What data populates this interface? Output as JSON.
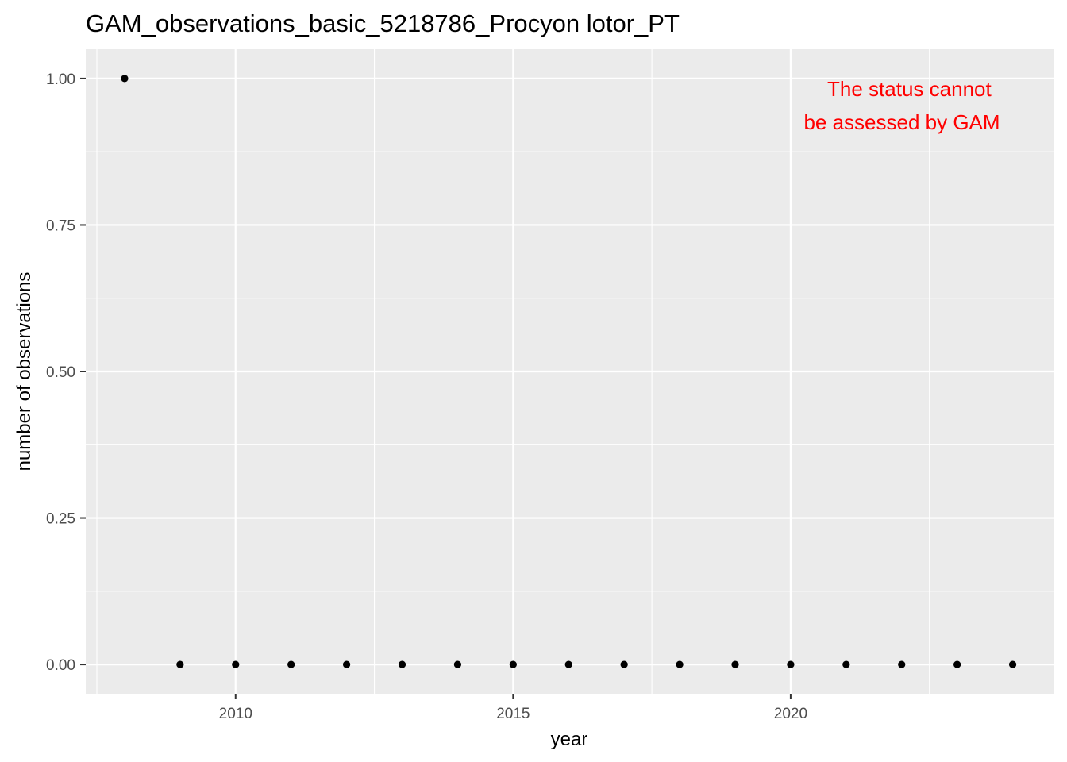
{
  "chart_data": {
    "type": "scatter",
    "title": "GAM_observations_basic_5218786_Procyon lotor_PT",
    "xlabel": "year",
    "ylabel": "number of observations",
    "xlim": [
      2007.3,
      2024.75
    ],
    "ylim": [
      -0.05,
      1.05
    ],
    "x_ticks": [
      2010,
      2015,
      2020
    ],
    "x_tick_labels": [
      "2010",
      "2015",
      "2020"
    ],
    "y_ticks": [
      0,
      0.25,
      0.5,
      0.75,
      1.0
    ],
    "y_tick_labels": [
      "0.00",
      "0.25",
      "0.50",
      "0.75",
      "1.00"
    ],
    "grid": true,
    "panel_color": "#ebebeb",
    "point_color": "#000000",
    "annotation": {
      "lines": [
        "The status cannot",
        "be assessed by GAM"
      ],
      "color": "#ff0000"
    },
    "points": [
      {
        "x": 2008,
        "y": 1
      },
      {
        "x": 2009,
        "y": 0
      },
      {
        "x": 2010,
        "y": 0
      },
      {
        "x": 2011,
        "y": 0
      },
      {
        "x": 2012,
        "y": 0
      },
      {
        "x": 2013,
        "y": 0
      },
      {
        "x": 2014,
        "y": 0
      },
      {
        "x": 2015,
        "y": 0
      },
      {
        "x": 2016,
        "y": 0
      },
      {
        "x": 2017,
        "y": 0
      },
      {
        "x": 2018,
        "y": 0
      },
      {
        "x": 2019,
        "y": 0
      },
      {
        "x": 2020,
        "y": 0
      },
      {
        "x": 2021,
        "y": 0
      },
      {
        "x": 2022,
        "y": 0
      },
      {
        "x": 2023,
        "y": 0
      },
      {
        "x": 2024,
        "y": 0
      }
    ]
  }
}
